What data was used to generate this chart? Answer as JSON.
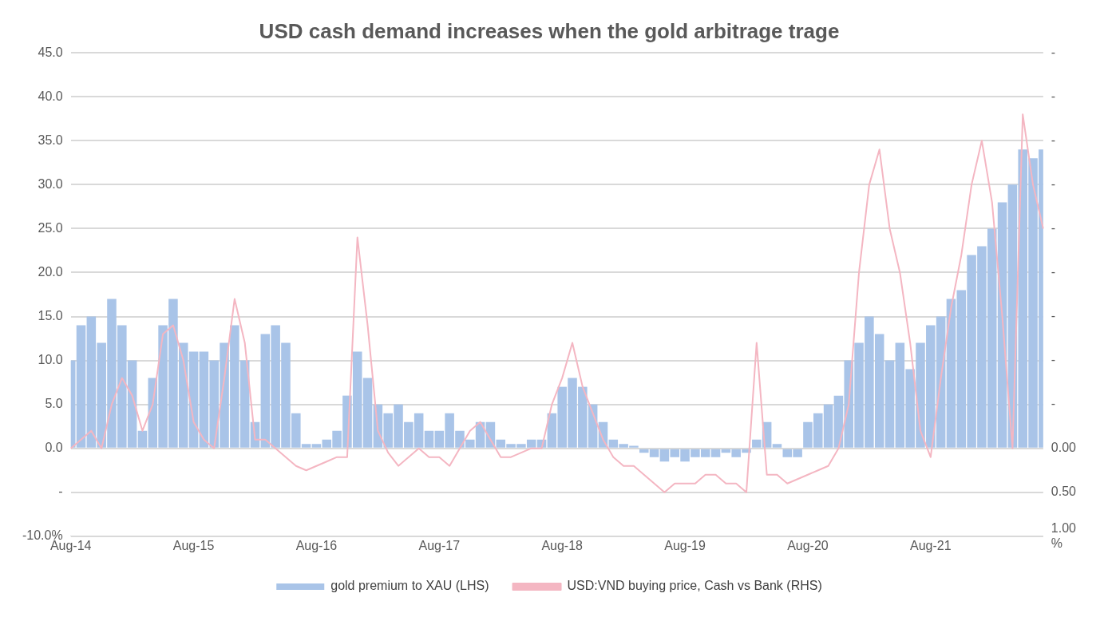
{
  "chart_data": {
    "type": "bar",
    "title": "USD cash demand increases when the gold arbitrage trage",
    "categories": [
      "Aug-14",
      null,
      null,
      null,
      null,
      null,
      null,
      null,
      null,
      null,
      null,
      null,
      "Aug-15",
      null,
      null,
      null,
      null,
      null,
      null,
      null,
      null,
      null,
      null,
      null,
      "Aug-16",
      null,
      null,
      null,
      null,
      null,
      null,
      null,
      null,
      null,
      null,
      null,
      "Aug-17",
      null,
      null,
      null,
      null,
      null,
      null,
      null,
      null,
      null,
      null,
      null,
      "Aug-18",
      null,
      null,
      null,
      null,
      null,
      null,
      null,
      null,
      null,
      null,
      null,
      "Aug-19",
      null,
      null,
      null,
      null,
      null,
      null,
      null,
      null,
      null,
      null,
      null,
      "Aug-20",
      null,
      null,
      null,
      null,
      null,
      null,
      null,
      null,
      null,
      null,
      null,
      "Aug-21",
      null,
      null,
      null,
      null,
      null,
      null,
      null,
      null,
      null,
      null,
      null
    ],
    "series": [
      {
        "name": "gold premium to XAU (LHS)",
        "color": "#a9c4e8",
        "values": [
          10,
          14,
          15,
          12,
          17,
          14,
          10,
          2,
          8,
          14,
          17,
          12,
          11,
          11,
          10,
          12,
          14,
          10,
          3,
          13,
          14,
          12,
          4,
          0.5,
          0.5,
          1,
          2,
          6,
          11,
          8,
          5,
          4,
          5,
          3,
          4,
          2,
          2,
          4,
          2,
          1,
          3,
          3,
          1,
          0.5,
          0.5,
          1,
          1,
          4,
          7,
          8,
          7,
          5,
          3,
          1,
          0.5,
          0.3,
          -0.5,
          -1,
          -1.5,
          -1,
          -1.5,
          -1,
          -1,
          -1,
          -0.5,
          -1,
          -0.5,
          1,
          3,
          0.5,
          -1,
          -1,
          3,
          4,
          5,
          6,
          10,
          12,
          15,
          13,
          10,
          12,
          9,
          12,
          14,
          15,
          17,
          18,
          22,
          23,
          25,
          28,
          30,
          34,
          33,
          34
        ]
      },
      {
        "name": "USD:VND buying price, Cash vs Bank (RHS)",
        "type": "line",
        "axis": "y2",
        "color": "#f4b6c2",
        "values": [
          0,
          0.1,
          0.2,
          0,
          0.5,
          0.8,
          0.6,
          0.2,
          0.5,
          1.3,
          1.4,
          1.0,
          0.3,
          0.1,
          0,
          0.8,
          1.7,
          1.2,
          0.1,
          0.1,
          0,
          -0.1,
          -0.2,
          -0.25,
          -0.2,
          -0.15,
          -0.1,
          -0.1,
          2.4,
          1.4,
          0.2,
          -0.05,
          -0.2,
          -0.1,
          0,
          -0.1,
          -0.1,
          -0.2,
          0,
          0.2,
          0.3,
          0.1,
          -0.1,
          -0.1,
          -0.05,
          0,
          0,
          0.5,
          0.8,
          1.2,
          0.7,
          0.4,
          0.1,
          -0.1,
          -0.2,
          -0.2,
          -0.3,
          -0.4,
          -0.5,
          -0.4,
          -0.4,
          -0.4,
          -0.3,
          -0.3,
          -0.4,
          -0.4,
          -0.5,
          1.2,
          -0.3,
          -0.3,
          -0.4,
          -0.35,
          -0.3,
          -0.25,
          -0.2,
          0,
          0.5,
          2.0,
          3.0,
          3.4,
          2.5,
          2.0,
          1.2,
          0.2,
          -0.1,
          0.8,
          1.6,
          2.2,
          3.0,
          3.5,
          2.8,
          1.5,
          0,
          3.8,
          3.0,
          2.5
        ]
      }
    ],
    "ylim": [
      -10,
      45
    ],
    "yticks": [
      {
        "value": -10,
        "label": "-10.0%"
      },
      {
        "value": -5,
        "label": "-"
      },
      {
        "value": 0,
        "label": "0.0"
      },
      {
        "value": 5,
        "label": "5.0"
      },
      {
        "value": 10,
        "label": "10.0"
      },
      {
        "value": 15,
        "label": "15.0"
      },
      {
        "value": 20,
        "label": "20.0"
      },
      {
        "value": 25,
        "label": "25.0"
      },
      {
        "value": 30,
        "label": "30.0"
      },
      {
        "value": 35,
        "label": "35.0"
      },
      {
        "value": 40,
        "label": "40.0"
      },
      {
        "value": 45,
        "label": "45.0"
      }
    ],
    "y2lim": [
      -1,
      4.5
    ],
    "y2ticks": [
      {
        "value": -1,
        "label": "1.00\n%"
      },
      {
        "value": -0.5,
        "label": "0.50"
      },
      {
        "value": 0,
        "label": "0.00"
      },
      {
        "value": 0.5,
        "label": "-"
      },
      {
        "value": 1,
        "label": "-"
      },
      {
        "value": 1.5,
        "label": "-"
      },
      {
        "value": 2,
        "label": "-"
      },
      {
        "value": 2.5,
        "label": "-"
      },
      {
        "value": 3,
        "label": "-"
      },
      {
        "value": 3.5,
        "label": "-"
      },
      {
        "value": 4,
        "label": "-"
      },
      {
        "value": 4.5,
        "label": "-"
      }
    ],
    "grid": "y",
    "legend": "bottom"
  }
}
